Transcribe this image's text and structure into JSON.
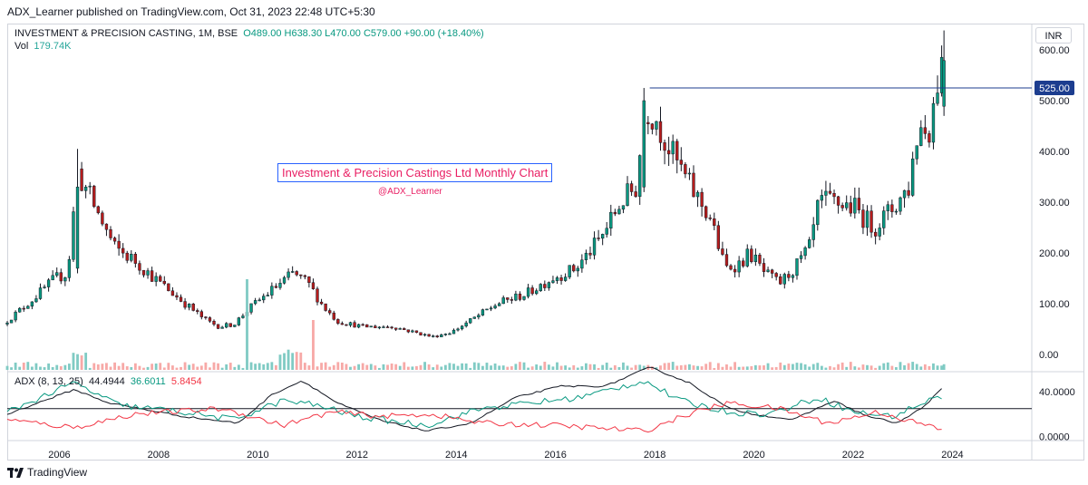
{
  "header": {
    "published": "ADX_Learner published on TradingView.com, Oct 31, 2023 22:48 UTC+5:30"
  },
  "legend": {
    "symbol": "INVESTMENT & PRECISION CASTING, 1M, BSE",
    "ohlc": "O489.00  H638.30  L470.00  C579.00  +90.00 (+18.40%)",
    "volume_label": "Vol",
    "volume_value": "179.74K"
  },
  "currency": "INR",
  "annotation": {
    "title": "Investment & Precision Castings Ltd Monthly Chart",
    "handle": "@ADX_Learner"
  },
  "adx_legend": {
    "name": "ADX (8, 13, 25)",
    "adx": "44.4944",
    "plus_di": "36.6011",
    "minus_di": "5.8454"
  },
  "footer": {
    "brand": "TradingView"
  },
  "colors": {
    "up": "#089981",
    "down": "#b71c1c",
    "vol_up": "#80cbc4",
    "vol_down": "#f7a9a7",
    "adx": "#131722",
    "plus_di": "#089981",
    "minus_di": "#f23645",
    "level_line": "#1c3d8f"
  },
  "chart_data": {
    "type": "candlestick",
    "interval": "1M",
    "x_ticks": [
      "2006",
      "2008",
      "2010",
      "2012",
      "2014",
      "2016",
      "2018",
      "2020",
      "2022",
      "2024"
    ],
    "price_axis": {
      "ticks": [
        "600.00",
        "500.00",
        "400.00",
        "300.00",
        "200.00",
        "100.00",
        "0.00"
      ],
      "ylim": [
        -30,
        650
      ]
    },
    "level_line": {
      "price": 525,
      "label": "525.00",
      "start_year": 2017.9
    },
    "anchors": [
      [
        2004.95,
        60
      ],
      [
        2005.5,
        105
      ],
      [
        2006.0,
        150
      ],
      [
        2006.25,
        160
      ],
      [
        2006.45,
        360
      ],
      [
        2006.8,
        290
      ],
      [
        2007.2,
        210
      ],
      [
        2007.6,
        185
      ],
      [
        2008.0,
        150
      ],
      [
        2008.5,
        110
      ],
      [
        2009.0,
        70
      ],
      [
        2009.3,
        55
      ],
      [
        2009.6,
        60
      ],
      [
        2009.9,
        90
      ],
      [
        2010.4,
        130
      ],
      [
        2010.8,
        160
      ],
      [
        2011.1,
        140
      ],
      [
        2011.4,
        95
      ],
      [
        2011.7,
        65
      ],
      [
        2012.2,
        55
      ],
      [
        2012.8,
        55
      ],
      [
        2013.2,
        45
      ],
      [
        2013.6,
        35
      ],
      [
        2014.0,
        45
      ],
      [
        2014.5,
        75
      ],
      [
        2014.9,
        100
      ],
      [
        2015.5,
        120
      ],
      [
        2016.0,
        150
      ],
      [
        2016.5,
        170
      ],
      [
        2017.0,
        230
      ],
      [
        2017.4,
        300
      ],
      [
        2017.7,
        330
      ],
      [
        2017.9,
        490
      ],
      [
        2018.1,
        470
      ],
      [
        2018.4,
        400
      ],
      [
        2018.8,
        330
      ],
      [
        2019.2,
        270
      ],
      [
        2019.5,
        170
      ],
      [
        2019.8,
        180
      ],
      [
        2020.0,
        200
      ],
      [
        2020.3,
        160
      ],
      [
        2020.6,
        140
      ],
      [
        2020.9,
        170
      ],
      [
        2021.2,
        210
      ],
      [
        2021.4,
        300
      ],
      [
        2021.7,
        300
      ],
      [
        2022.1,
        290
      ],
      [
        2022.5,
        250
      ],
      [
        2022.9,
        290
      ],
      [
        2023.2,
        330
      ],
      [
        2023.4,
        450
      ],
      [
        2023.6,
        440
      ],
      [
        2023.75,
        520
      ],
      [
        2023.83,
        579
      ]
    ],
    "last_candle": {
      "open": 489.0,
      "high": 638.3,
      "low": 470.0,
      "close": 579.0
    },
    "adx_axis": {
      "ticks": [
        "40.0000",
        "0.0000"
      ],
      "ylim": [
        -2,
        58
      ],
      "level": 25
    },
    "adx_anchors": {
      "adx": [
        [
          2004.95,
          20
        ],
        [
          2006.3,
          42
        ],
        [
          2007.0,
          30
        ],
        [
          2008.5,
          18
        ],
        [
          2009.6,
          12
        ],
        [
          2010.3,
          38
        ],
        [
          2010.9,
          50
        ],
        [
          2011.6,
          30
        ],
        [
          2012.5,
          14
        ],
        [
          2013.4,
          5
        ],
        [
          2014.3,
          12
        ],
        [
          2015.2,
          35
        ],
        [
          2016.1,
          45
        ],
        [
          2017.0,
          45
        ],
        [
          2017.9,
          62
        ],
        [
          2018.7,
          48
        ],
        [
          2019.5,
          25
        ],
        [
          2020.0,
          20
        ],
        [
          2020.8,
          15
        ],
        [
          2021.6,
          32
        ],
        [
          2022.3,
          18
        ],
        [
          2022.9,
          12
        ],
        [
          2023.4,
          26
        ],
        [
          2023.83,
          44.4944
        ]
      ],
      "plus_di": [
        [
          2004.95,
          22
        ],
        [
          2006.3,
          48
        ],
        [
          2007.2,
          28
        ],
        [
          2008.5,
          22
        ],
        [
          2009.5,
          15
        ],
        [
          2010.5,
          32
        ],
        [
          2011.2,
          28
        ],
        [
          2012.0,
          18
        ],
        [
          2013.4,
          10
        ],
        [
          2014.5,
          25
        ],
        [
          2015.5,
          30
        ],
        [
          2016.5,
          35
        ],
        [
          2017.8,
          50
        ],
        [
          2018.5,
          32
        ],
        [
          2019.5,
          22
        ],
        [
          2020.3,
          20
        ],
        [
          2021.3,
          35
        ],
        [
          2022.0,
          22
        ],
        [
          2022.8,
          18
        ],
        [
          2023.5,
          32
        ],
        [
          2023.83,
          36.6011
        ]
      ],
      "minus_di": [
        [
          2004.95,
          15
        ],
        [
          2006.3,
          8
        ],
        [
          2007.5,
          20
        ],
        [
          2009.3,
          25
        ],
        [
          2010.5,
          10
        ],
        [
          2011.5,
          22
        ],
        [
          2012.5,
          18
        ],
        [
          2013.5,
          20
        ],
        [
          2014.5,
          12
        ],
        [
          2016.0,
          10
        ],
        [
          2017.8,
          5
        ],
        [
          2018.8,
          22
        ],
        [
          2019.5,
          30
        ],
        [
          2020.5,
          25
        ],
        [
          2021.5,
          12
        ],
        [
          2022.5,
          22
        ],
        [
          2023.3,
          12
        ],
        [
          2023.83,
          5.8454
        ]
      ]
    }
  }
}
